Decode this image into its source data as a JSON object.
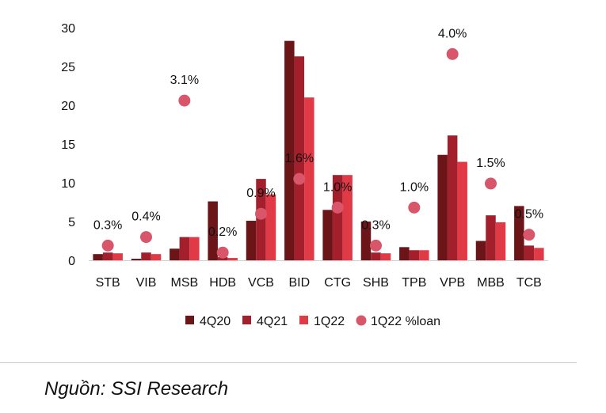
{
  "chart_data": {
    "type": "bar",
    "categories": [
      "STB",
      "VIB",
      "MSB",
      "HDB",
      "VCB",
      "BID",
      "CTG",
      "SHB",
      "TPB",
      "VPB",
      "MBB",
      "TCB"
    ],
    "series": [
      {
        "name": "4Q20",
        "values": [
          0.8,
          0.2,
          1.5,
          7.6,
          5.1,
          28.3,
          6.5,
          5.0,
          1.7,
          13.6,
          2.5,
          7.0
        ],
        "color": "#6b1518"
      },
      {
        "name": "4Q21",
        "values": [
          1.0,
          1.0,
          3.0,
          0.4,
          10.5,
          26.3,
          11.0,
          1.0,
          1.3,
          16.1,
          5.8,
          1.9
        ],
        "color": "#a31f2c"
      },
      {
        "name": "1Q22",
        "values": [
          0.9,
          0.8,
          3.0,
          0.3,
          8.5,
          21.0,
          11.0,
          0.9,
          1.3,
          12.7,
          4.9,
          1.6
        ],
        "color": "#e03a47"
      }
    ],
    "scatter": {
      "name": "1Q22 %loan",
      "color": "#d9566a",
      "values": [
        1.9,
        3.0,
        20.6,
        1.0,
        6.0,
        10.5,
        6.8,
        1.9,
        6.8,
        26.6,
        9.9,
        3.3
      ],
      "labels": [
        "0.3%",
        "0.4%",
        "3.1%",
        "0.2%",
        "0.9%",
        "1.6%",
        "1.0%",
        "0.3%",
        "1.0%",
        "4.0%",
        "1.5%",
        "0.5%"
      ]
    },
    "yticks": [
      "0",
      "5",
      "10",
      "15",
      "20",
      "25",
      "30"
    ],
    "ylim": [
      0,
      30
    ],
    "title": "",
    "xlabel": "",
    "ylabel": "",
    "grid": false,
    "legend": "bottom"
  },
  "source": "Nguồn: SSI Research"
}
